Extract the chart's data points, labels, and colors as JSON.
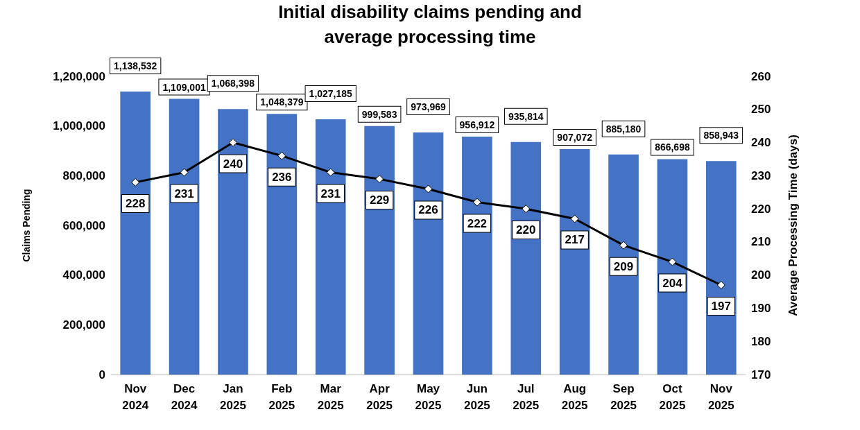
{
  "chart_data": {
    "type": "bar",
    "title": "Initial disability claims pending and\naverage processing time",
    "ylabel": "Claims Pending",
    "y2label": "Average Processing Time (days)",
    "categories": [
      "Nov\n2024",
      "Dec\n2024",
      "Jan\n2025",
      "Feb\n2025",
      "Mar\n2025",
      "Apr\n2025",
      "May\n2025",
      "Jun\n2025",
      "Jul\n2025",
      "Aug\n2025",
      "Sep\n2025",
      "Oct\n2025",
      "Nov\n2025"
    ],
    "series": [
      {
        "color": "#4472c4",
        "values": [
          1138532,
          1109001,
          1068398,
          1048379,
          1027185,
          999583,
          973969,
          956912,
          935814,
          907072,
          885180,
          866698,
          858943
        ],
        "value_labels": [
          "1,138,532",
          "1,109,001",
          "1,068,398",
          "1,048,379",
          "1,027,185",
          "999,583",
          "973,969",
          "956,912",
          "935,814",
          "907,072",
          "885,180",
          "866,698",
          "858,943"
        ]
      },
      {
        "type": "line",
        "axis": "y2",
        "color": "#000000",
        "marker": "diamond",
        "values": [
          228,
          231,
          240,
          236,
          231,
          229,
          226,
          222,
          220,
          217,
          209,
          204,
          197
        ],
        "value_labels": [
          "228",
          "231",
          "240",
          "236",
          "231",
          "229",
          "226",
          "222",
          "220",
          "217",
          "209",
          "204",
          "197"
        ]
      }
    ],
    "ylim": [
      0,
      1200000
    ],
    "yticks": [
      0,
      {
        "value": 200000,
        "label": "200,000"
      },
      {
        "value": 400000,
        "label": "400,000"
      },
      {
        "value": 600000,
        "label": "600,000"
      },
      {
        "value": 800000,
        "label": "800,000"
      },
      {
        "value": 1000000,
        "label": "1,000,000"
      },
      {
        "value": 1200000,
        "label": "1,200,000"
      }
    ],
    "y2lim": [
      170,
      260
    ],
    "y2ticks": [
      170,
      180,
      190,
      200,
      210,
      220,
      230,
      240,
      250,
      260
    ],
    "grid": false
  }
}
